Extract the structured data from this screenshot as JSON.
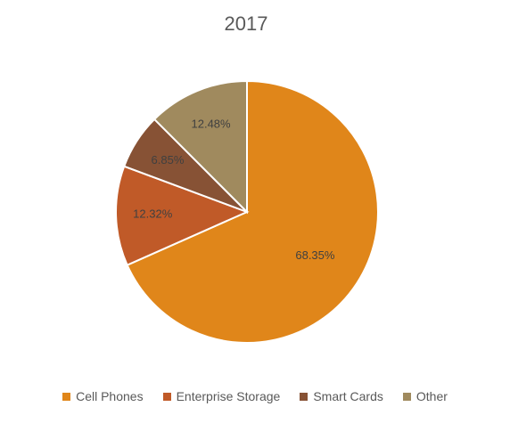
{
  "chart_data": {
    "type": "pie",
    "title": "2017",
    "categories": [
      "Cell Phones",
      "Enterprise Storage",
      "Smart Cards",
      "Other"
    ],
    "values": [
      68.35,
      12.32,
      6.85,
      12.48
    ],
    "data_labels": [
      "68.35%",
      "12.32%",
      "6.85%",
      "12.48%"
    ],
    "colors": [
      "#E0861A",
      "#C05A28",
      "#875235",
      "#A08A5E"
    ],
    "legend_position": "bottom",
    "start_angle": "12 o'clock, clockwise"
  }
}
